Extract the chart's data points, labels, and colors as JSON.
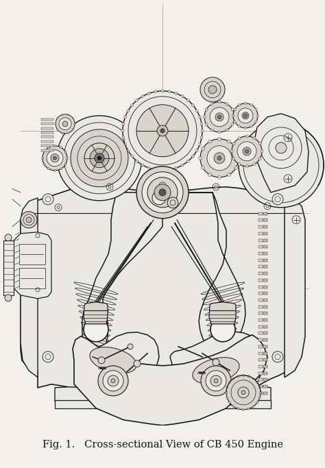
{
  "caption": "Fig. 1.   Cross-sectional View of CB 450 Engine",
  "caption_fontsize": 10.5,
  "background_color": "#f2f0eb",
  "line_color": "#1a1a1a",
  "light_fill": "#eae8e2",
  "mid_fill": "#d8d5cc",
  "dark_fill": "#bfbcb2",
  "fig_width": 4.74,
  "fig_height": 6.83,
  "dpi": 100,
  "construction_color": "#8aabcc",
  "construction_alpha": 0.35
}
